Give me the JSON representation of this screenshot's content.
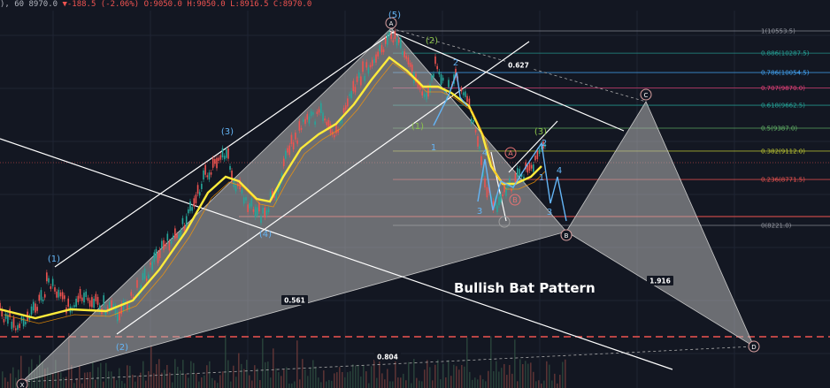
{
  "header": {
    "prefix": "), 60",
    "last": "8970.0",
    "change_arrow": "▼",
    "change": "-188.5 (-2.06%)",
    "open": "O:9050.0",
    "high": "H:9050.0",
    "low": "L:8916.5",
    "close": "C:8970.0"
  },
  "colors": {
    "background": "#131722",
    "pattern_fill": "#b4b4b4",
    "price_line": "#ffeb3b",
    "wave_main": "#64b5f6",
    "wave_minor": "#8bc34a",
    "dash_line": "#ef5350"
  },
  "chart_data": {
    "type": "line",
    "title": "Bullish Bat Pattern",
    "fib_levels": [
      {
        "label": "1(10553.5)",
        "value": 10553.5,
        "color": "#9598a1"
      },
      {
        "label": "0.886(10287.5)",
        "value": 10287.5,
        "color": "#26a69a"
      },
      {
        "label": "0.786(10054.5)",
        "value": 10054.5,
        "color": "#42a5f5"
      },
      {
        "label": "0.707(9870.0)",
        "value": 9870.0,
        "color": "#ec407a"
      },
      {
        "label": "0.618(9662.5)",
        "value": 9662.5,
        "color": "#26a69a"
      },
      {
        "label": "0.5(9387.0)",
        "value": 9387.0,
        "color": "#66bb6a"
      },
      {
        "label": "0.382(9112.0)",
        "value": 9112.0,
        "color": "#c0ca33"
      },
      {
        "label": "0.236(8771.5)",
        "value": 8771.5,
        "color": "#ef5350"
      },
      {
        "label": "0(8221.0)",
        "value": 8221.0,
        "color": "#9598a1"
      }
    ],
    "ratios": [
      "0.627",
      "1.916",
      "0.561",
      "0.804"
    ],
    "pattern_points": [
      "X",
      "A",
      "B",
      "C",
      "D"
    ],
    "wave_labels_main": [
      "(1)",
      "(2)",
      "(3)",
      "(4)",
      "(5)"
    ],
    "wave_labels_minor": [
      "(1)",
      "(2)",
      "(3)",
      "1",
      "2",
      "3",
      "4",
      "1",
      "2",
      "3",
      "4",
      "A",
      "B"
    ]
  }
}
